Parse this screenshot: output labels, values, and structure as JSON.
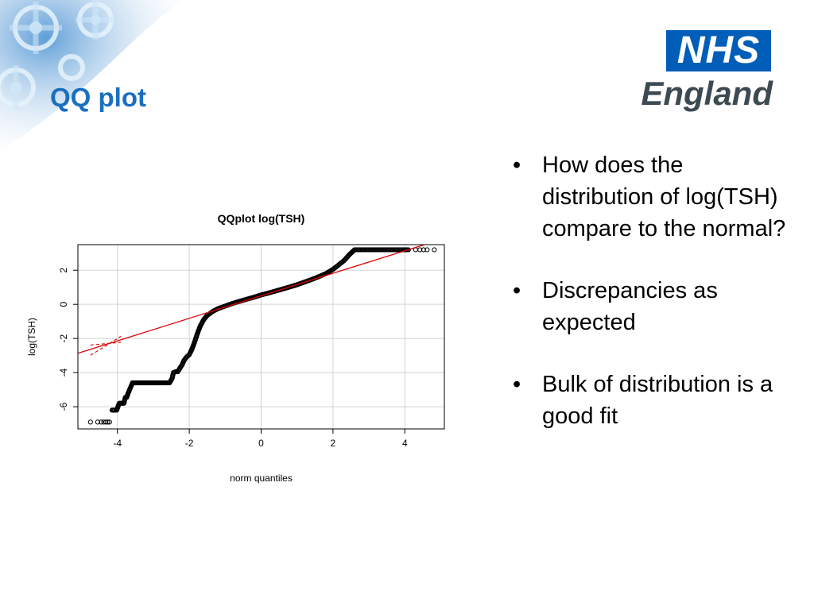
{
  "slide": {
    "title": "QQ plot",
    "bullets": [
      "How does the distribution of log(TSH) compare to the normal?",
      "Discrepancies as expected",
      "Bulk of distribution is a good fit"
    ]
  },
  "logo": {
    "line1": "NHS",
    "line2": "England",
    "brand_color": "#005eb8"
  },
  "colors": {
    "title": "#1a6fc0",
    "reference_line": "#e00000",
    "points": "#000000"
  },
  "chart_data": {
    "type": "scatter",
    "title": "QQplot log(TSH)",
    "xlabel": "norm quantiles",
    "ylabel": "log(TSH)",
    "xlim": [
      -5.1,
      5.1
    ],
    "ylim": [
      -7.3,
      3.5
    ],
    "xticks": [
      -4,
      -2,
      0,
      2,
      4
    ],
    "yticks": [
      -6,
      -4,
      -2,
      0,
      2
    ],
    "grid": true,
    "series": [
      {
        "marker": "open-circle",
        "points": [
          [
            -4.75,
            -6.9
          ],
          [
            -4.55,
            -6.9
          ],
          [
            -4.45,
            -6.9
          ],
          [
            -4.38,
            -6.9
          ],
          [
            -4.32,
            -6.9
          ],
          [
            -4.27,
            -6.9
          ],
          [
            -4.22,
            -6.9
          ],
          [
            -4.15,
            -6.2
          ],
          [
            -4.08,
            -6.2
          ],
          [
            -4.02,
            -6.2
          ],
          [
            -3.95,
            -5.8
          ],
          [
            -3.88,
            -5.8
          ],
          [
            -3.82,
            -5.8
          ],
          [
            -3.78,
            -5.45
          ],
          [
            -3.74,
            -5.45
          ],
          [
            -3.7,
            -5.2
          ],
          [
            -3.66,
            -5.0
          ],
          [
            -3.62,
            -4.8
          ],
          [
            -3.58,
            -4.6
          ],
          [
            -3.45,
            -4.6
          ],
          [
            -3.3,
            -4.6
          ],
          [
            -3.15,
            -4.6
          ],
          [
            -3.0,
            -4.6
          ],
          [
            -2.85,
            -4.6
          ],
          [
            -2.7,
            -4.6
          ],
          [
            -2.55,
            -4.6
          ],
          [
            -2.48,
            -4.35
          ],
          [
            -2.44,
            -4.0
          ],
          [
            -2.38,
            -3.95
          ],
          [
            -2.32,
            -3.95
          ],
          [
            -2.25,
            -3.7
          ],
          [
            -2.2,
            -3.55
          ],
          [
            -2.15,
            -3.3
          ],
          [
            -2.08,
            -3.1
          ],
          [
            -2.0,
            -2.95
          ],
          [
            -1.92,
            -2.6
          ],
          [
            -1.85,
            -2.2
          ],
          [
            -1.78,
            -1.75
          ],
          [
            -1.7,
            -1.3
          ],
          [
            -1.6,
            -0.9
          ],
          [
            -1.5,
            -0.65
          ],
          [
            -1.35,
            -0.42
          ],
          [
            -1.2,
            -0.25
          ],
          [
            -1.0,
            -0.1
          ],
          [
            -0.8,
            0.05
          ],
          [
            -0.6,
            0.18
          ],
          [
            -0.4,
            0.3
          ],
          [
            -0.2,
            0.42
          ],
          [
            0.0,
            0.55
          ],
          [
            0.2,
            0.66
          ],
          [
            0.4,
            0.78
          ],
          [
            0.6,
            0.9
          ],
          [
            0.8,
            1.02
          ],
          [
            1.0,
            1.15
          ],
          [
            1.2,
            1.3
          ],
          [
            1.4,
            1.45
          ],
          [
            1.6,
            1.62
          ],
          [
            1.8,
            1.8
          ],
          [
            2.0,
            2.05
          ],
          [
            2.15,
            2.3
          ],
          [
            2.3,
            2.55
          ],
          [
            2.45,
            2.9
          ],
          [
            2.6,
            3.2
          ],
          [
            2.9,
            3.2
          ],
          [
            3.2,
            3.2
          ],
          [
            3.5,
            3.2
          ],
          [
            3.8,
            3.2
          ],
          [
            4.1,
            3.2
          ],
          [
            4.3,
            3.2
          ],
          [
            4.42,
            3.2
          ],
          [
            4.52,
            3.2
          ],
          [
            4.62,
            3.2
          ],
          [
            4.82,
            3.2
          ]
        ]
      }
    ],
    "reference_line": {
      "intercept": 0.5,
      "slope": 0.66,
      "color": "#e00000",
      "confidence_band_x": [
        -4.75,
        -3.9
      ]
    }
  }
}
